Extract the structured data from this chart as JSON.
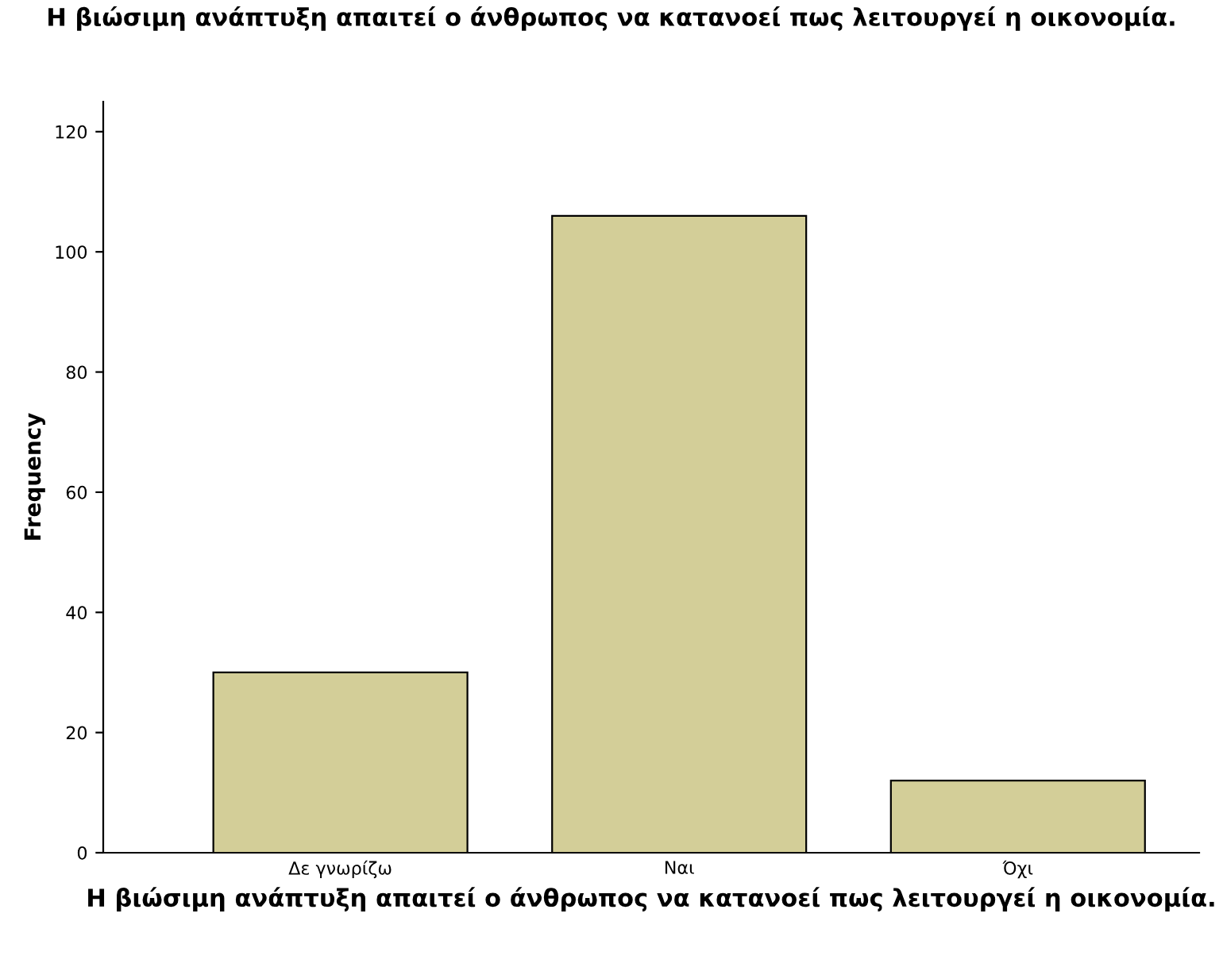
{
  "chart_data": {
    "type": "bar",
    "title": "Η βιώσιμη ανάπτυξη απαιτεί ο άνθρωπος να κατανοεί πως λειτουργεί η οικονομία.",
    "xlabel": "Η βιώσιμη ανάπτυξη απαιτεί ο άνθρωπος να κατανοεί πως λειτουργεί η οικονομία.",
    "ylabel": "Frequency",
    "categories": [
      "Δε γνωρίζω",
      "Ναι",
      "Όχι"
    ],
    "values": [
      30,
      106,
      12
    ],
    "color": "#d3ce98",
    "ylim": [
      0,
      125
    ],
    "yticks": [
      0,
      20,
      40,
      60,
      80,
      100,
      120
    ],
    "grid": false
  }
}
